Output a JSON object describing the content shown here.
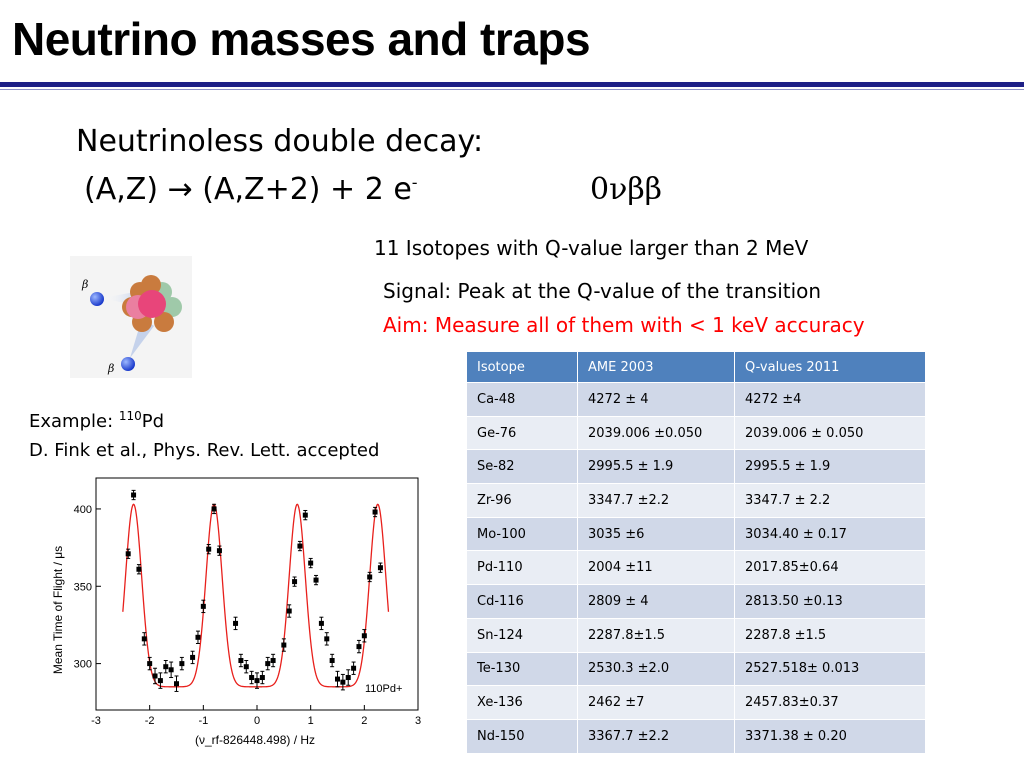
{
  "slide": {
    "title": "Neutrino masses and traps",
    "heading": "Neutrinoless double decay:",
    "reaction": {
      "lhs": "(A,Z)",
      "arrow": "→",
      "rhs": "(A,Z+2) + 2 e",
      "charge": "-"
    },
    "decay_mode": "0νββ",
    "isotopes_note": "11 Isotopes with Q-value larger than 2 MeV",
    "signal": "Signal: Peak at the Q-value of the transition",
    "aim": "Aim: Measure all of them with < 1 keV accuracy",
    "aim_color": "#ff0000",
    "example_prefix": "Example: ",
    "example_mass": "110",
    "example_element": "Pd",
    "reference": "D. Fink et al., Phys. Rev. Lett. accepted"
  },
  "figure": {
    "beta_label_top": "β",
    "beta_label_bottom": "β"
  },
  "table": {
    "headers": [
      "Isotope",
      "AME 2003",
      "Q-values 2011"
    ],
    "header_color": "#4f81bd",
    "rows": [
      [
        "Ca-48",
        "4272 ± 4",
        "4272 ±4"
      ],
      [
        "Ge-76",
        "2039.006 ±0.050",
        "2039.006 ± 0.050"
      ],
      [
        "Se-82",
        "2995.5 ± 1.9",
        "2995.5 ± 1.9"
      ],
      [
        "Zr-96",
        "3347.7 ±2.2",
        "3347.7 ± 2.2"
      ],
      [
        "Mo-100",
        "3035 ±6",
        "3034.40 ± 0.17"
      ],
      [
        "Pd-110",
        "2004 ±11",
        "2017.85±0.64"
      ],
      [
        "Cd-116",
        "2809 ± 4",
        "2813.50 ±0.13"
      ],
      [
        "Sn-124",
        "2287.8±1.5",
        "2287.8 ±1.5"
      ],
      [
        "Te-130",
        "2530.3 ±2.0",
        "2527.518± 0.013"
      ],
      [
        "Xe-136",
        "2462 ±7",
        "2457.83±0.37"
      ],
      [
        "Nd-150",
        "3367.7 ±2.2",
        "3371.38 ± 0.20"
      ]
    ]
  },
  "chart_data": {
    "type": "scatter",
    "xlabel": "(ν_rf-826448.498) / Hz",
    "ylabel": "Mean Time of Flight / μs",
    "annotation": "110Pd+",
    "xlim": [
      -3,
      3
    ],
    "ylim": [
      270,
      420
    ],
    "xticks": [
      -3,
      -2,
      -1,
      0,
      1,
      2,
      3
    ],
    "yticks": [
      300,
      350,
      400
    ],
    "data_color": "#000000",
    "fit_color": "#e8201c",
    "points": [
      {
        "x": -2.4,
        "y": 371,
        "err": 3
      },
      {
        "x": -2.3,
        "y": 409,
        "err": 3
      },
      {
        "x": -2.2,
        "y": 361,
        "err": 3
      },
      {
        "x": -2.1,
        "y": 316,
        "err": 4
      },
      {
        "x": -2.0,
        "y": 300,
        "err": 4
      },
      {
        "x": -1.9,
        "y": 292,
        "err": 5
      },
      {
        "x": -1.8,
        "y": 289,
        "err": 5
      },
      {
        "x": -1.7,
        "y": 298,
        "err": 4
      },
      {
        "x": -1.6,
        "y": 296,
        "err": 5
      },
      {
        "x": -1.5,
        "y": 287,
        "err": 5
      },
      {
        "x": -1.4,
        "y": 300,
        "err": 4
      },
      {
        "x": -1.2,
        "y": 304,
        "err": 4
      },
      {
        "x": -1.1,
        "y": 317,
        "err": 4
      },
      {
        "x": -1.0,
        "y": 337,
        "err": 4
      },
      {
        "x": -0.9,
        "y": 374,
        "err": 3
      },
      {
        "x": -0.8,
        "y": 400,
        "err": 3
      },
      {
        "x": -0.7,
        "y": 373,
        "err": 3
      },
      {
        "x": -0.4,
        "y": 326,
        "err": 4
      },
      {
        "x": -0.3,
        "y": 302,
        "err": 4
      },
      {
        "x": -0.2,
        "y": 298,
        "err": 4
      },
      {
        "x": -0.1,
        "y": 291,
        "err": 4
      },
      {
        "x": 0.0,
        "y": 289,
        "err": 5
      },
      {
        "x": 0.1,
        "y": 291,
        "err": 4
      },
      {
        "x": 0.2,
        "y": 300,
        "err": 4
      },
      {
        "x": 0.3,
        "y": 302,
        "err": 4
      },
      {
        "x": 0.5,
        "y": 312,
        "err": 4
      },
      {
        "x": 0.6,
        "y": 334,
        "err": 4
      },
      {
        "x": 0.7,
        "y": 353,
        "err": 3
      },
      {
        "x": 0.8,
        "y": 376,
        "err": 3
      },
      {
        "x": 0.9,
        "y": 396,
        "err": 3
      },
      {
        "x": 1.0,
        "y": 365,
        "err": 3
      },
      {
        "x": 1.1,
        "y": 354,
        "err": 3
      },
      {
        "x": 1.2,
        "y": 326,
        "err": 4
      },
      {
        "x": 1.3,
        "y": 316,
        "err": 4
      },
      {
        "x": 1.4,
        "y": 302,
        "err": 4
      },
      {
        "x": 1.5,
        "y": 290,
        "err": 5
      },
      {
        "x": 1.6,
        "y": 288,
        "err": 5
      },
      {
        "x": 1.7,
        "y": 291,
        "err": 5
      },
      {
        "x": 1.8,
        "y": 297,
        "err": 4
      },
      {
        "x": 1.9,
        "y": 311,
        "err": 4
      },
      {
        "x": 2.0,
        "y": 318,
        "err": 4
      },
      {
        "x": 2.1,
        "y": 356,
        "err": 3
      },
      {
        "x": 2.2,
        "y": 398,
        "err": 3
      },
      {
        "x": 2.3,
        "y": 362,
        "err": 3
      }
    ],
    "fit_model": "gaussian_dips_peaks",
    "fit_params": {
      "baseline": 285,
      "amplitude": 118,
      "centers": [
        -2.3,
        -0.8,
        0.75,
        2.25
      ],
      "width": 0.15
    }
  }
}
